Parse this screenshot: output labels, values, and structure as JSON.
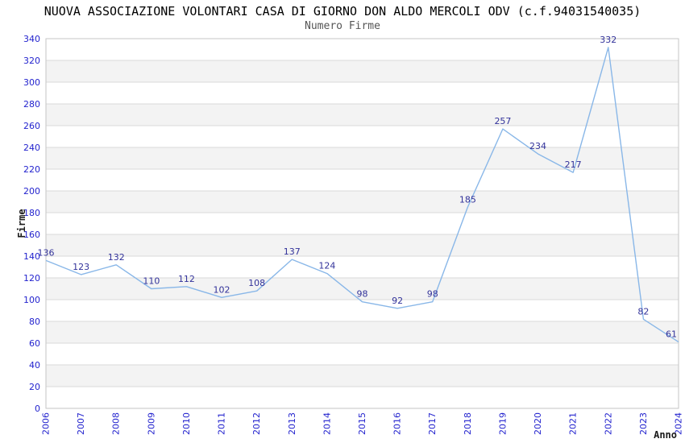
{
  "chart_data": {
    "type": "line",
    "title": "NUOVA ASSOCIAZIONE VOLONTARI CASA DI GIORNO DON ALDO MERCOLI ODV (c.f.94031540035)",
    "subtitle": "Numero Firme",
    "xlabel": "Anno",
    "ylabel": "Firme",
    "categories": [
      "2006",
      "2007",
      "2008",
      "2009",
      "2010",
      "2011",
      "2012",
      "2013",
      "2014",
      "2015",
      "2016",
      "2017",
      "2018",
      "2019",
      "2020",
      "2021",
      "2022",
      "2023",
      "2024"
    ],
    "values": [
      136,
      123,
      132,
      110,
      112,
      102,
      108,
      137,
      124,
      98,
      92,
      98,
      185,
      257,
      234,
      217,
      332,
      82,
      61
    ],
    "ylim": [
      0,
      340
    ],
    "ytick_step": 20,
    "y_ticks": [
      0,
      20,
      40,
      60,
      80,
      100,
      120,
      140,
      160,
      180,
      200,
      220,
      240,
      260,
      280,
      300,
      320,
      340
    ],
    "grid": "horizontal-bands",
    "legend": "none",
    "colors": {
      "line": "#89b7e8",
      "tick_label": "#2323ce",
      "data_label": "#32329a",
      "band_fill": "#f3f3f3",
      "grid_line": "#d9d9d9",
      "plot_border": "#c6c6c6",
      "axis_title": "#1a1a1a",
      "title": "#000000",
      "subtitle": "#555555",
      "background": "#ffffff"
    }
  }
}
